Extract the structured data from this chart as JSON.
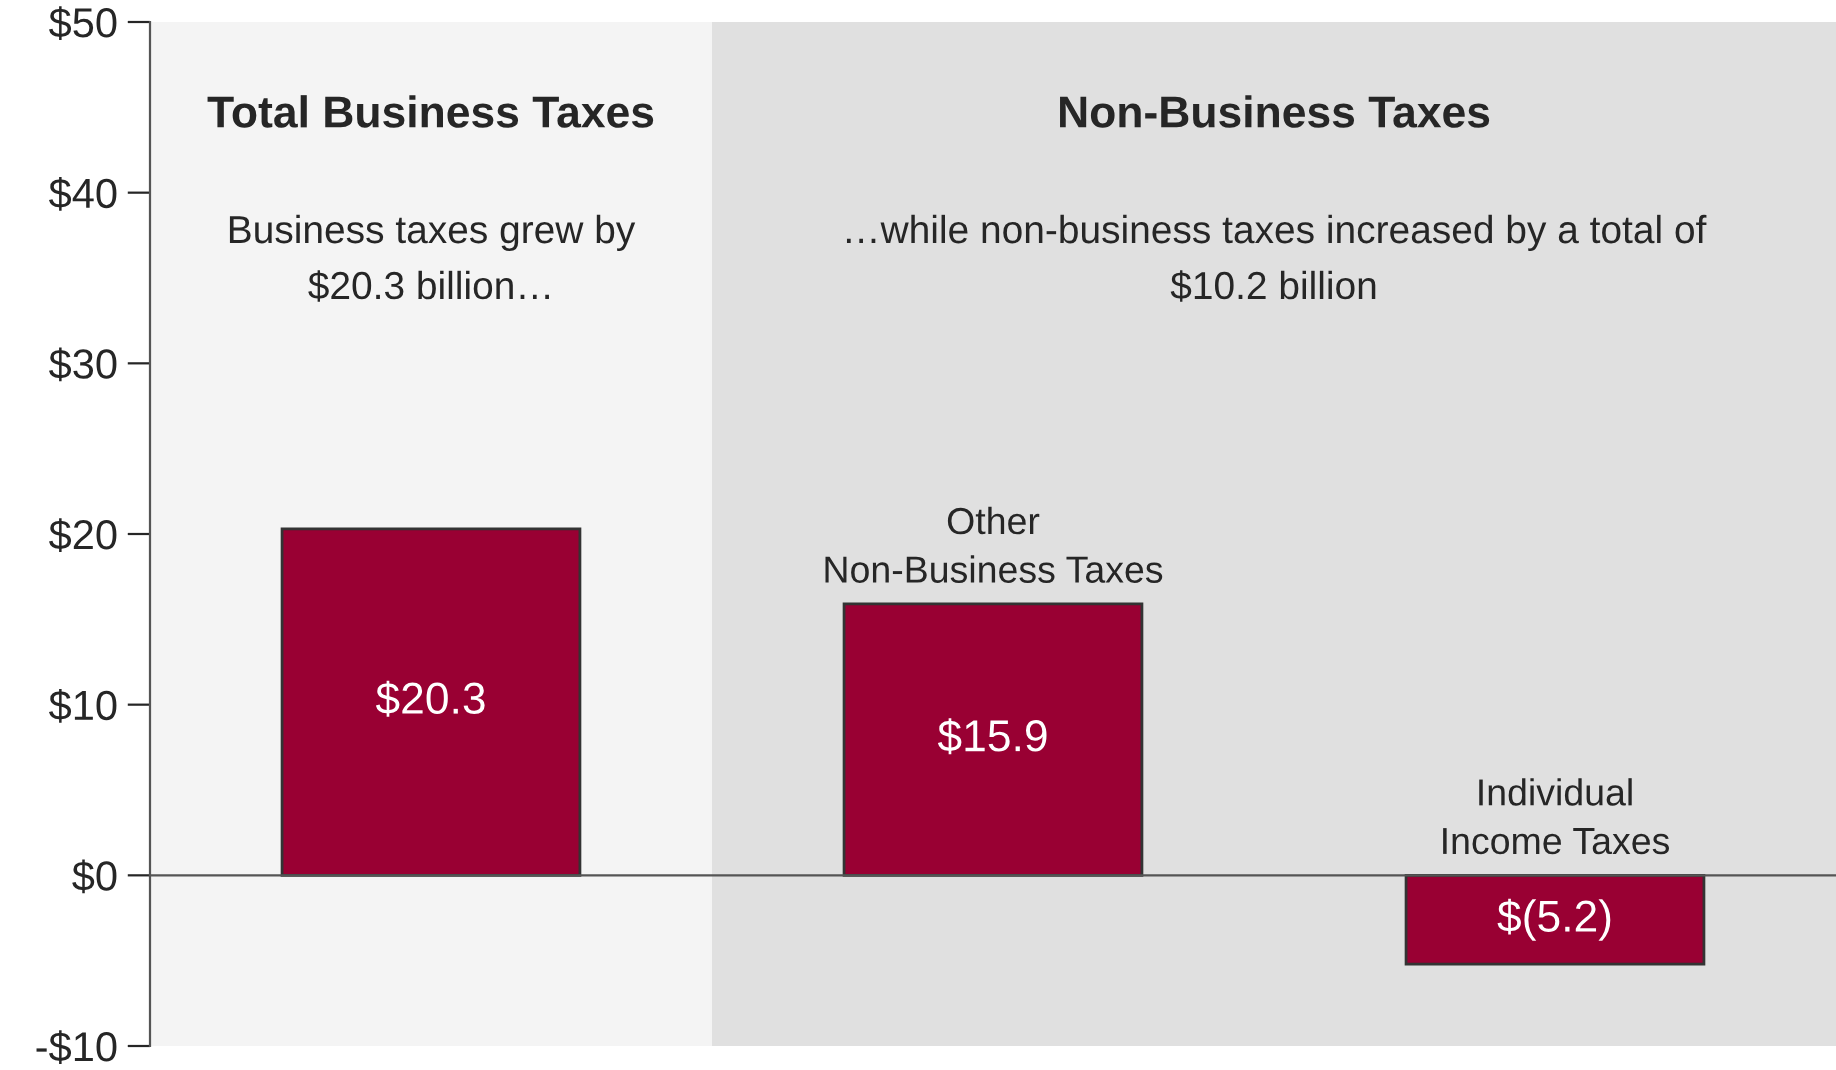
{
  "chart_data": {
    "type": "bar",
    "categories": [
      null,
      "Other\nNon-Business Taxes",
      "Individual\nIncome Taxes"
    ],
    "values": [
      20.3,
      15.9,
      -5.2
    ],
    "value_labels": [
      "$20.3",
      "$15.9",
      "$(5.2)"
    ],
    "color": "#990033",
    "ylim": [
      -10,
      50
    ],
    "yticks": [
      {
        "value": -10,
        "label": "-$10"
      },
      {
        "value": 0,
        "label": "$0"
      },
      {
        "value": 10,
        "label": "$10"
      },
      {
        "value": 20,
        "label": "$20"
      },
      {
        "value": 30,
        "label": "$30"
      },
      {
        "value": 40,
        "label": "$40"
      },
      {
        "value": 50,
        "label": "$50"
      }
    ],
    "annotations": [
      "Total Business Taxes",
      "Non-Business Taxes",
      "Business taxes grew by\n$20.3 billion…",
      "…while non-business taxes increased by a total of\n$10.2 billion"
    ]
  }
}
